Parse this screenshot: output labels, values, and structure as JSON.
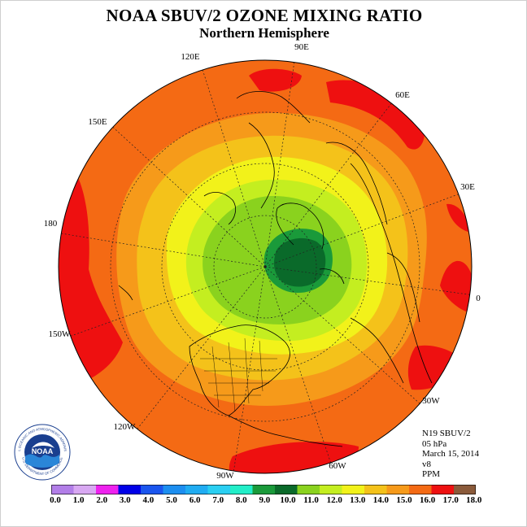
{
  "title": "NOAA SBUV/2 OZONE MIXING RATIO",
  "subtitle": "Northern Hemisphere",
  "longitude_labels": [
    "90E",
    "60E",
    "30E",
    "0",
    "30W",
    "60W",
    "90W",
    "120W",
    "150W",
    "180",
    "150E",
    "120E"
  ],
  "info": {
    "satellite": "N19 SBUV/2",
    "level": "05 hPa",
    "date": "March 15, 2014",
    "version": "v8",
    "units": "PPM"
  },
  "logo": {
    "text": "NOAA",
    "ring_top": "NATIONAL OCEANIC AND ATMOSPHERIC ADMINISTRATION",
    "ring_bottom": "U.S. DEPARTMENT OF COMMERCE"
  },
  "colorbar": {
    "ticks": [
      "0.0",
      "1.0",
      "2.0",
      "3.0",
      "4.0",
      "5.0",
      "6.0",
      "7.0",
      "8.0",
      "9.0",
      "10.0",
      "11.0",
      "12.0",
      "13.0",
      "14.0",
      "15.0",
      "16.0",
      "17.0",
      "18.0"
    ],
    "colors": [
      "#b27ee8",
      "#d8a8f2",
      "#ee22ee",
      "#0000e8",
      "#1a55ee",
      "#1c8ef0",
      "#20acf2",
      "#2acff2",
      "#22eec8",
      "#1a9a3a",
      "#0a6a2a",
      "#8ad21e",
      "#c4ee20",
      "#f2f21a",
      "#f4c21a",
      "#f69a1a",
      "#f46a14",
      "#ee1010",
      "#8a5a3a"
    ]
  }
}
